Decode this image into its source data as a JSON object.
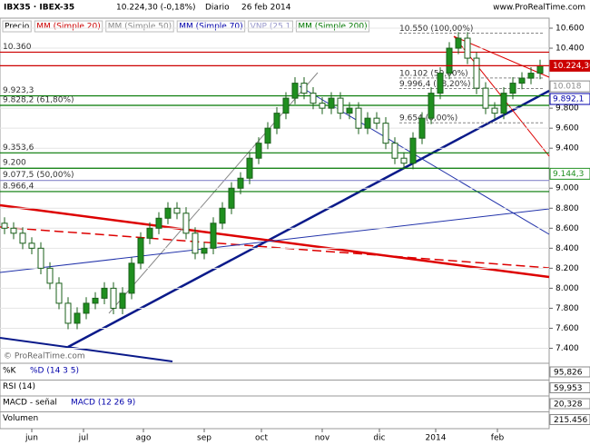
{
  "header": {
    "symbol": "IBX35 · IBEX-35",
    "price": "10.224,30 (-0,18%)",
    "period": "Diario",
    "date": "26 feb 2014",
    "site": "www.ProRealTime.com",
    "copyright": "© ProRealTime.com"
  },
  "indicators": [
    {
      "name": "Precio",
      "color": "#000000"
    },
    {
      "name": "MM (Simple 20)",
      "color": "#cc0000"
    },
    {
      "name": "MM (Simple 50)",
      "color": "#888888"
    },
    {
      "name": "MM (Simple 70)",
      "color": "#0000aa"
    },
    {
      "name": "VNP (25 1",
      "color": "#9999cc"
    },
    {
      "name": "MM (Simple 200)",
      "color": "#007700"
    }
  ],
  "chart_data": {
    "type": "candlestick",
    "open": [
      8650,
      8600,
      8550,
      8450,
      8400,
      8200,
      8050,
      7850,
      7650,
      7750,
      7850,
      7900,
      8000,
      7800,
      7950,
      8250,
      8500,
      8600,
      8700,
      8800,
      8750,
      8550,
      8350,
      8400,
      8650,
      8800,
      9000,
      9100,
      9300,
      9450,
      9600,
      9750,
      9900,
      10050,
      9950,
      9850,
      9800,
      9900,
      9750,
      9800,
      9600,
      9700,
      9650,
      9450,
      9300,
      9250,
      9500,
      9700,
      9950,
      10150,
      10400,
      10500,
      10300,
      10000,
      9800,
      9750,
      9950,
      10050,
      10100,
      10150
    ],
    "high": [
      8710,
      8660,
      8610,
      8510,
      8460,
      8260,
      8110,
      7910,
      7810,
      7910,
      7960,
      8060,
      8060,
      8010,
      8310,
      8560,
      8660,
      8760,
      8860,
      8860,
      8810,
      8610,
      8460,
      8710,
      8860,
      9060,
      9160,
      9360,
      9510,
      9660,
      9810,
      9960,
      10110,
      10110,
      10010,
      9910,
      9960,
      9960,
      9860,
      9860,
      9760,
      9760,
      9710,
      9510,
      9360,
      9560,
      9760,
      10010,
      10210,
      10460,
      10560,
      10560,
      10360,
      10060,
      9860,
      10010,
      10110,
      10160,
      10210,
      10284.3
    ],
    "low": [
      8540,
      8490,
      8390,
      8340,
      8140,
      7990,
      7790,
      7590,
      7590,
      7690,
      7790,
      7840,
      7740,
      7740,
      7890,
      8190,
      8440,
      8540,
      8640,
      8690,
      8490,
      8290,
      8290,
      8340,
      8590,
      8740,
      8940,
      9040,
      9240,
      9390,
      9540,
      9690,
      9840,
      9890,
      9790,
      9740,
      9740,
      9690,
      9690,
      9540,
      9540,
      9590,
      9390,
      9240,
      9190,
      9190,
      9440,
      9640,
      9890,
      10090,
      10340,
      10240,
      9940,
      9740,
      9690,
      9690,
      9890,
      9990,
      10040,
      10090
    ],
    "close": [
      8600,
      8550,
      8450,
      8400,
      8200,
      8050,
      7850,
      7650,
      7750,
      7850,
      7900,
      8000,
      7800,
      7950,
      8250,
      8500,
      8600,
      8700,
      8800,
      8750,
      8550,
      8350,
      8400,
      8650,
      8800,
      9000,
      9100,
      9300,
      9450,
      9600,
      9750,
      9900,
      10050,
      9950,
      9850,
      9800,
      9900,
      9750,
      9800,
      9600,
      9700,
      9650,
      9450,
      9300,
      9250,
      9500,
      9700,
      9950,
      10150,
      10400,
      10500,
      10300,
      10000,
      9800,
      9750,
      9950,
      10050,
      10100,
      10150,
      10224.3
    ],
    "up_color": "#1f8f1f",
    "down_color": "#ffffff",
    "xlim": [
      0,
      60
    ],
    "xticks": [
      {
        "value": 3.5,
        "label": "jun"
      },
      {
        "value": 9.2,
        "label": "jul"
      },
      {
        "value": 15.8,
        "label": "ago"
      },
      {
        "value": 22.5,
        "label": "sep"
      },
      {
        "value": 28.8,
        "label": "oct"
      },
      {
        "value": 35.5,
        "label": "nov"
      },
      {
        "value": 41.8,
        "label": "dic"
      },
      {
        "value": 48,
        "label": "2014"
      },
      {
        "value": 54.8,
        "label": "feb"
      }
    ],
    "ylim": [
      7250,
      10700
    ],
    "yticks": [
      {
        "value": 10600,
        "label": "10.600"
      },
      {
        "value": 10400,
        "label": "10.400"
      },
      {
        "value": 9800,
        "label": "9.800"
      },
      {
        "value": 9600,
        "label": "9.600"
      },
      {
        "value": 9400,
        "label": "9.400"
      },
      {
        "value": 9000,
        "label": "9.000"
      },
      {
        "value": 8800,
        "label": "8.800"
      },
      {
        "value": 8600,
        "label": "8.600"
      },
      {
        "value": 8400,
        "label": "8.400"
      },
      {
        "value": 8200,
        "label": "8.200"
      },
      {
        "value": 8000,
        "label": "8.000"
      },
      {
        "value": 7800,
        "label": "7.800"
      },
      {
        "value": 7600,
        "label": "7.600"
      },
      {
        "value": 7400,
        "label": "7.400"
      }
    ],
    "levels": [
      {
        "value": 10360,
        "label": "10.360",
        "color": "#cc0000"
      },
      {
        "value": 9923.3,
        "label": "9.923,3",
        "color": "#007700"
      },
      {
        "value": 9828.2,
        "label": "9.828,2 (61,80%)",
        "color": "#007700"
      },
      {
        "value": 9353.6,
        "label": "9.353,6",
        "color": "#007700"
      },
      {
        "value": 9200,
        "label": "9.200",
        "color": "#007700"
      },
      {
        "value": 9077.5,
        "label": "9.077,5 (50,00%)",
        "color": "#8888cc"
      },
      {
        "value": 8966.4,
        "label": "8.966,4",
        "color": "#007700"
      }
    ],
    "fib": [
      {
        "value": 10550,
        "label": "10.550 (100,00%)"
      },
      {
        "value": 10102,
        "label": "10.102 (50,00%)"
      },
      {
        "value": 9996.4,
        "label": "9.996,4 (38,20%)"
      },
      {
        "value": 9654,
        "label": "9.654 (0,00%)"
      }
    ],
    "markers": [
      {
        "value": 10224.3,
        "label": "10.224,30",
        "color": "#cc0000"
      },
      {
        "value": 10018,
        "label": "10.018",
        "color": "#888888"
      },
      {
        "value": 9892.1,
        "label": "9.892,1",
        "color": "#0000aa"
      },
      {
        "value": 9144.3,
        "label": "9.144,3",
        "color": "#1f8f1f"
      }
    ]
  },
  "panels": [
    {
      "name": "%K",
      "label": "%D (14 3 5)",
      "value": "95,826"
    },
    {
      "name": "RSI (14)",
      "label": "",
      "value": "59,953"
    },
    {
      "name": "MACD - señal",
      "label": "MACD (12 26 9)",
      "value": "20,328"
    },
    {
      "name": "Volumen",
      "label": "",
      "value": "215.456"
    }
  ]
}
